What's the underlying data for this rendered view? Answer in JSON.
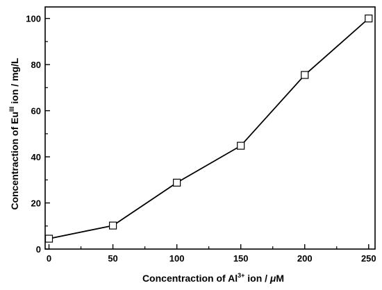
{
  "chart_data": {
    "type": "line",
    "markers": "open-square",
    "x": [
      0,
      50,
      100,
      150,
      200,
      250
    ],
    "series": [
      {
        "values": [
          4.5,
          10.2,
          28.8,
          44.8,
          75.5,
          100
        ]
      }
    ],
    "xlabel": {
      "prefix": "Concentraction of Al",
      "superscript": "3+",
      "suffix": " ion / ",
      "unit_symbol": "μ",
      "unit": "M"
    },
    "ylabel": {
      "prefix": "Concentraction of Eu",
      "superscript": "III",
      "suffix": " ion / mg/L"
    },
    "xlim": [
      -3,
      255
    ],
    "ylim": [
      0,
      105
    ],
    "xticks": [
      0,
      50,
      100,
      150,
      200,
      250
    ],
    "yticks": [
      0,
      20,
      40,
      60,
      80,
      100
    ],
    "grid": false,
    "line_color": "#000000",
    "marker_fill": "#ffffff"
  }
}
